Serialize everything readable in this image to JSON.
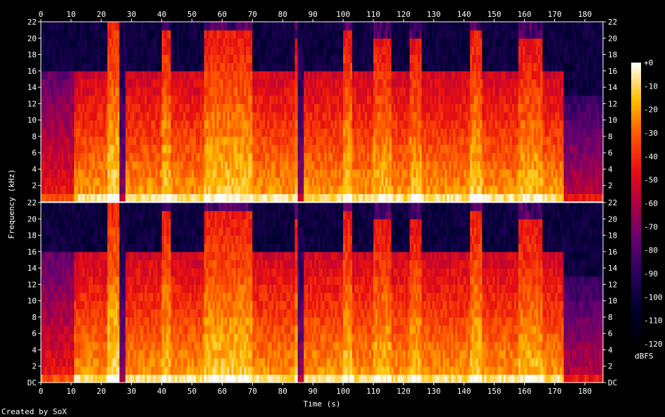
{
  "chart_data": {
    "type": "heatmap",
    "subtype": "spectrogram",
    "xlabel": "Time (s)",
    "ylabel": "Frequency (kHz)",
    "xlim": [
      0,
      186
    ],
    "ylim": [
      0,
      22
    ],
    "x_ticks": [
      "0",
      "10",
      "20",
      "30",
      "40",
      "50",
      "60",
      "70",
      "80",
      "90",
      "100",
      "110",
      "120",
      "130",
      "140",
      "150",
      "160",
      "170",
      "180"
    ],
    "x_tick_values": [
      0,
      10,
      20,
      30,
      40,
      50,
      60,
      70,
      80,
      90,
      100,
      110,
      120,
      130,
      140,
      150,
      160,
      170,
      180
    ],
    "y_ticks": [
      "DC",
      "2",
      "4",
      "6",
      "8",
      "10",
      "12",
      "14",
      "16",
      "18",
      "20",
      "22"
    ],
    "y_tick_values": [
      0,
      2,
      4,
      6,
      8,
      10,
      12,
      14,
      16,
      18,
      20,
      22
    ],
    "channels": 2,
    "colorbar": {
      "label": "dBFS",
      "ticks": [
        "+0",
        "-10",
        "-20",
        "-30",
        "-40",
        "-50",
        "-60",
        "-70",
        "-80",
        "-90",
        "-100",
        "-110",
        "-120"
      ],
      "tick_values": [
        0,
        -10,
        -20,
        -30,
        -40,
        -50,
        -60,
        -70,
        -80,
        -90,
        -100,
        -110,
        -120
      ],
      "range": [
        -120,
        0
      ]
    },
    "segments": [
      {
        "start": 0,
        "end": 11,
        "top_khz": 16,
        "intensity": 0.35
      },
      {
        "start": 11,
        "end": 22,
        "top_khz": 16,
        "intensity": 0.55
      },
      {
        "start": 22,
        "end": 26,
        "top_khz": 22,
        "intensity": 0.65
      },
      {
        "start": 26,
        "end": 28,
        "top_khz": 22,
        "intensity": 0.15
      },
      {
        "start": 28,
        "end": 40,
        "top_khz": 16,
        "intensity": 0.55
      },
      {
        "start": 40,
        "end": 43,
        "top_khz": 21,
        "intensity": 0.62
      },
      {
        "start": 43,
        "end": 54,
        "top_khz": 16,
        "intensity": 0.55
      },
      {
        "start": 54,
        "end": 70,
        "top_khz": 21,
        "intensity": 0.62
      },
      {
        "start": 70,
        "end": 84,
        "top_khz": 16,
        "intensity": 0.55
      },
      {
        "start": 84,
        "end": 85,
        "top_khz": 20,
        "intensity": 0.6
      },
      {
        "start": 85,
        "end": 87,
        "top_khz": 22,
        "intensity": 0.15
      },
      {
        "start": 87,
        "end": 100,
        "top_khz": 16,
        "intensity": 0.55
      },
      {
        "start": 100,
        "end": 103,
        "top_khz": 21,
        "intensity": 0.62
      },
      {
        "start": 103,
        "end": 110,
        "top_khz": 16,
        "intensity": 0.55
      },
      {
        "start": 110,
        "end": 116,
        "top_khz": 20,
        "intensity": 0.6
      },
      {
        "start": 116,
        "end": 122,
        "top_khz": 16,
        "intensity": 0.55
      },
      {
        "start": 122,
        "end": 126,
        "top_khz": 20,
        "intensity": 0.6
      },
      {
        "start": 126,
        "end": 142,
        "top_khz": 16,
        "intensity": 0.55
      },
      {
        "start": 142,
        "end": 146,
        "top_khz": 21,
        "intensity": 0.62
      },
      {
        "start": 146,
        "end": 158,
        "top_khz": 16,
        "intensity": 0.55
      },
      {
        "start": 158,
        "end": 166,
        "top_khz": 20,
        "intensity": 0.6
      },
      {
        "start": 166,
        "end": 173,
        "top_khz": 16,
        "intensity": 0.55
      },
      {
        "start": 173,
        "end": 186,
        "top_khz": 13,
        "intensity": 0.25
      }
    ]
  },
  "footer": {
    "created_by": "Created by SoX"
  }
}
